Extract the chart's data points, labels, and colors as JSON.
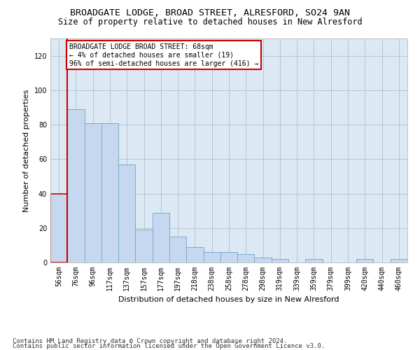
{
  "title1": "BROADGATE LODGE, BROAD STREET, ALRESFORD, SO24 9AN",
  "title2": "Size of property relative to detached houses in New Alresford",
  "xlabel": "Distribution of detached houses by size in New Alresford",
  "ylabel": "Number of detached properties",
  "footer1": "Contains HM Land Registry data © Crown copyright and database right 2024.",
  "footer2": "Contains public sector information licensed under the Open Government Licence v3.0.",
  "annotation_line1": "BROADGATE LODGE BROAD STREET: 68sqm",
  "annotation_line2": "← 4% of detached houses are smaller (19)",
  "annotation_line3": "96% of semi-detached houses are larger (416) →",
  "bar_categories": [
    "56sqm",
    "76sqm",
    "96sqm",
    "117sqm",
    "137sqm",
    "157sqm",
    "177sqm",
    "197sqm",
    "218sqm",
    "238sqm",
    "258sqm",
    "278sqm",
    "298sqm",
    "319sqm",
    "339sqm",
    "359sqm",
    "379sqm",
    "399sqm",
    "420sqm",
    "440sqm",
    "460sqm"
  ],
  "bar_values": [
    40,
    89,
    81,
    81,
    57,
    19,
    29,
    15,
    9,
    6,
    6,
    5,
    3,
    2,
    0,
    2,
    0,
    0,
    2,
    0,
    2
  ],
  "bar_color": "#c5d8ef",
  "bar_edge_color": "#7aabcf",
  "highlight_color": "#cc0000",
  "highlight_index": 0,
  "ylim": [
    0,
    130
  ],
  "yticks": [
    0,
    20,
    40,
    60,
    80,
    100,
    120
  ],
  "axes_bg_color": "#dce9f5",
  "background_color": "#ffffff",
  "grid_color": "#b0bec8",
  "annotation_box_edge_color": "#cc0000",
  "title1_fontsize": 9.5,
  "title2_fontsize": 8.5,
  "xlabel_fontsize": 8,
  "ylabel_fontsize": 8,
  "tick_fontsize": 7,
  "annotation_fontsize": 7,
  "footer_fontsize": 6.5
}
